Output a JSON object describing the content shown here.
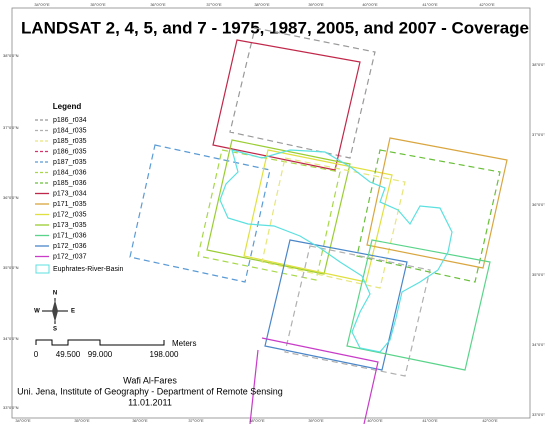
{
  "title": "LANDSAT 2, 4, 5, and 7 - 1975, 1987, 2005, and 2007 - Coverage",
  "top_labels": [
    "34°0'0\"E",
    "35°0'0\"E",
    "36°0'0\"E",
    "37°0'0\"E",
    "38°0'0\"E",
    "39°0'0\"E",
    "40°0'0\"E",
    "41°0'0\"E",
    "42°0'0\"E"
  ],
  "bottom_labels": [
    "34°0'0\"E",
    "35°0'0\"E",
    "36°0'0\"E",
    "37°0'0\"E",
    "38°0'0\"E",
    "39°0'0\"E",
    "40°0'0\"E",
    "41°0'0\"E",
    "42°0'0\"E"
  ],
  "left_labels": [
    "38°0'0\"N",
    "37°0'0\"N",
    "36°0'0\"N",
    "35°0'0\"N",
    "34°0'0\"N",
    "33°0'0\"N"
  ],
  "right_labels": [
    "38°0'0\"N",
    "37°0'0\"N",
    "36°0'0\"N",
    "35°0'0\"N",
    "34°0'0\"N",
    "33°0'0\"N"
  ],
  "legend": {
    "title": "Legend",
    "items": [
      {
        "label": "p186_r034",
        "color": "#999999",
        "dashed": true
      },
      {
        "label": "p184_r035",
        "color": "#b0b0b0",
        "dashed": true
      },
      {
        "label": "p185_r035",
        "color": "#e6e67a",
        "dashed": true
      },
      {
        "label": "p186_r035",
        "color": "#d6336c",
        "dashed": true
      },
      {
        "label": "p187_r035",
        "color": "#5b9bd5",
        "dashed": true
      },
      {
        "label": "p184_r036",
        "color": "#a8d84a",
        "dashed": true
      },
      {
        "label": "p185_r036",
        "color": "#6abf3a",
        "dashed": true
      },
      {
        "label": "p173_r034",
        "color": "#c0284a",
        "dashed": false
      },
      {
        "label": "p171_r035",
        "color": "#d9a640",
        "dashed": false
      },
      {
        "label": "p172_r035",
        "color": "#e0e040",
        "dashed": false
      },
      {
        "label": "p173_r035",
        "color": "#9acd32",
        "dashed": false
      },
      {
        "label": "p171_r036",
        "color": "#5ad48a",
        "dashed": false
      },
      {
        "label": "p172_r036",
        "color": "#4a86c8",
        "dashed": false
      },
      {
        "label": "p172_r037",
        "color": "#c83cc8",
        "dashed": false
      }
    ],
    "basin": {
      "label": "Euphrates-River-Basin",
      "color": "#5ce0e0"
    }
  },
  "compass": {
    "n": "N",
    "e": "E",
    "s": "S",
    "w": "W"
  },
  "scale": {
    "labels": [
      "0",
      "49.500",
      "99.000",
      "198.000"
    ],
    "unit": "Meters"
  },
  "credits": [
    "Wafi Al-Fares",
    "Uni. Jena, Institute of Geography - Department of Remote Sensing",
    "11.01.2011"
  ]
}
